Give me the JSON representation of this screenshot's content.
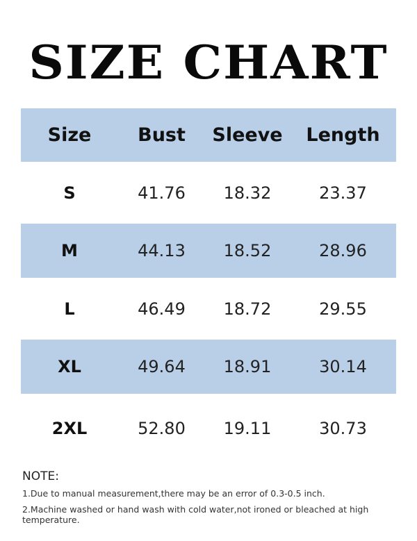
{
  "title": "SIZE CHART",
  "table": {
    "headers": [
      "Size",
      "Bust",
      "Sleeve",
      "Length"
    ],
    "rows": [
      [
        "S",
        "41.76",
        "18.32",
        "23.37"
      ],
      [
        "M",
        "44.13",
        "18.52",
        "28.96"
      ],
      [
        "L",
        "46.49",
        "18.72",
        "29.55"
      ],
      [
        "XL",
        "49.64",
        "18.91",
        "30.14"
      ],
      [
        "2XL",
        "52.80",
        "19.11",
        "30.73"
      ]
    ]
  },
  "colors": {
    "band": "#b9cfe8",
    "text": "#111111"
  },
  "notes": {
    "heading": "NOTE:",
    "items": [
      "1.Due to manual measurement,there may be an error of 0.3-0.5 inch.",
      "2.Machine washed or hand wash with cold water,not ironed or bleached at high temperature."
    ]
  }
}
